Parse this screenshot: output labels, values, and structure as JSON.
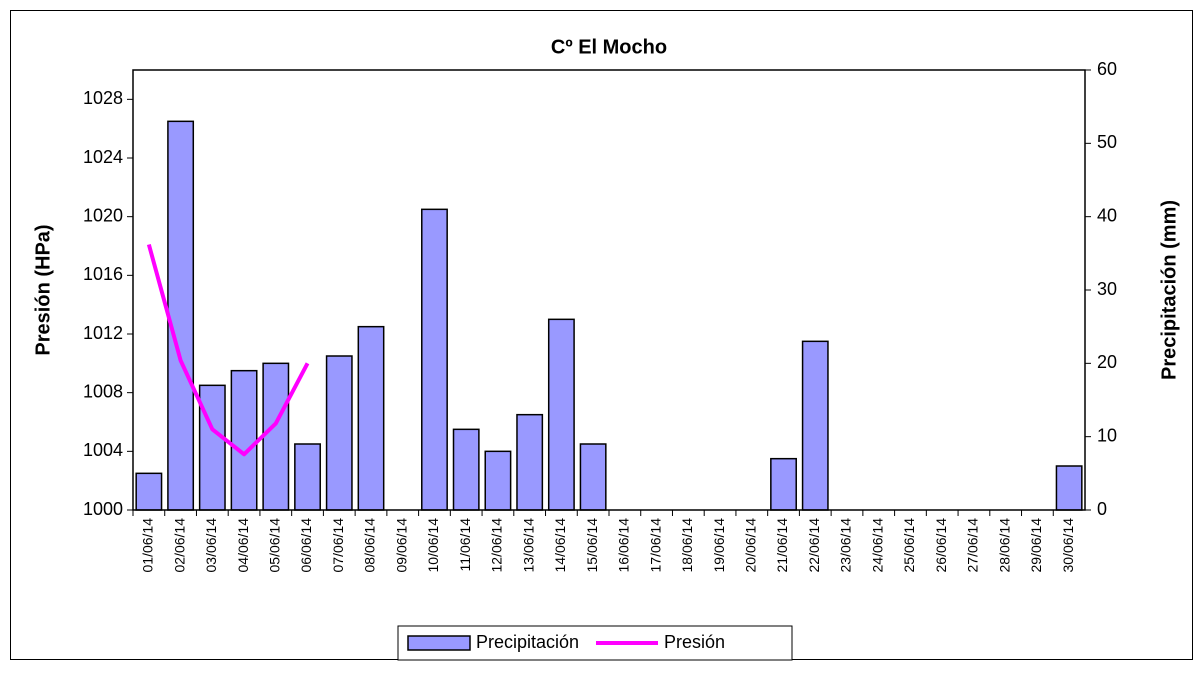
{
  "chart_data": {
    "type": "bar-line",
    "title": "Cº El Mocho",
    "ylabel": "Presión (HPa)",
    "y2label": "Precipitación (mm)",
    "categories": [
      "01/06/14",
      "02/06/14",
      "03/06/14",
      "04/06/14",
      "05/06/14",
      "06/06/14",
      "07/06/14",
      "08/06/14",
      "09/06/14",
      "10/06/14",
      "11/06/14",
      "12/06/14",
      "13/06/14",
      "14/06/14",
      "15/06/14",
      "16/06/14",
      "17/06/14",
      "18/06/14",
      "19/06/14",
      "20/06/14",
      "21/06/14",
      "22/06/14",
      "23/06/14",
      "24/06/14",
      "25/06/14",
      "26/06/14",
      "27/06/14",
      "28/06/14",
      "29/06/14",
      "30/06/14"
    ],
    "series": [
      {
        "name": "Precipitación",
        "type": "bar",
        "axis": "y2",
        "color": "#9999ff",
        "values": [
          5,
          53,
          17,
          19,
          20,
          9,
          21,
          25,
          0,
          41,
          11,
          8,
          13,
          26,
          9,
          0,
          0,
          0,
          0,
          0,
          7,
          23,
          0,
          0,
          0,
          0,
          0,
          0,
          0,
          6
        ]
      },
      {
        "name": "Presión",
        "type": "line",
        "axis": "y",
        "color": "#ff00ff",
        "values": [
          1018.1,
          1010.2,
          1005.5,
          1003.8,
          1005.9,
          1010,
          null,
          null,
          null,
          null,
          null,
          null,
          null,
          null,
          null,
          null,
          null,
          null,
          null,
          null,
          null,
          null,
          null,
          null,
          null,
          null,
          null,
          null,
          null,
          null
        ]
      }
    ],
    "ylim": [
      1000,
      1030
    ],
    "yticks": [
      1000,
      1004,
      1008,
      1012,
      1016,
      1020,
      1024,
      1028
    ],
    "y2lim": [
      0,
      60
    ],
    "y2ticks": [
      0,
      10,
      20,
      30,
      40,
      50,
      60
    ],
    "legend": "bottom"
  }
}
